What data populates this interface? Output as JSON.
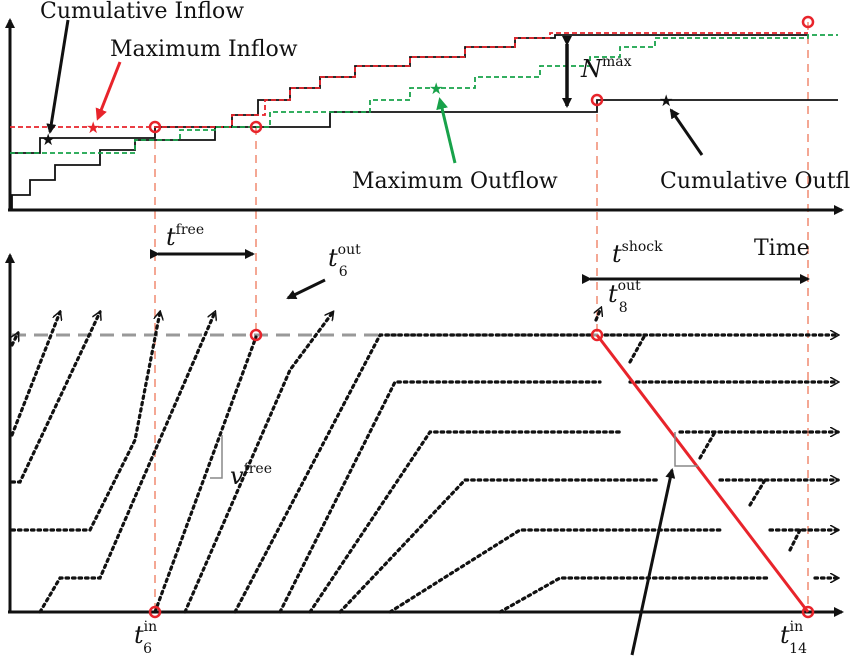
{
  "labels": {
    "cumulative_inflow": "Cumulative Inflow",
    "maximum_inflow": "Maximum Inflow",
    "maximum_outflow": "Maximum Outflow",
    "cumulative_outflow": "Cumulative Outfl",
    "n_max_base": "N",
    "n_max_sup": "max",
    "time": "Time",
    "t_free_base": "t",
    "t_free_sup": "free",
    "t_shock_base": "t",
    "t_shock_sup": "shock",
    "t6_out_base": "t",
    "t6_out_sup": "out",
    "t6_out_sub": "6",
    "t8_out_base": "t",
    "t8_out_sup": "out",
    "t8_out_sub": "8",
    "v_free_base": "v",
    "v_free_sup": "free",
    "t6_in_base": "t",
    "t6_in_sup": "in",
    "t6_in_sub": "6",
    "t14_in_base": "t",
    "t14_in_sup": "in",
    "t14_in_sub": "14"
  },
  "colors": {
    "cumulative_inflow": "#111111",
    "maximum_inflow": "#e8242b",
    "maximum_outflow": "#18a24a",
    "cumulative_outflow": "#111111",
    "shock_line": "#e8242b",
    "guide_lines": "#f08a70",
    "capacity_line": "#999999"
  }
}
